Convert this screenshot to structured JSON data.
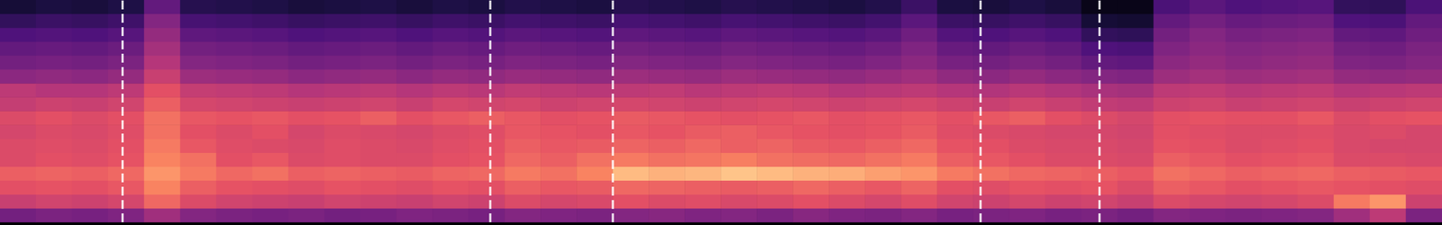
{
  "chart_data": {
    "type": "heatmap",
    "tick_labels": false,
    "grid": false,
    "xlim": [
      0,
      40
    ],
    "ylim": [
      0,
      16
    ],
    "zlim": [
      0,
      1
    ],
    "vertical_lines": {
      "x": [
        3.4,
        13.6,
        17.0,
        27.2,
        30.5
      ],
      "color": "#ffffff",
      "line_style": "dashed"
    },
    "cells": [
      [
        0.34,
        0.36,
        0.35,
        0.37,
        0.45,
        0.38,
        0.36,
        0.35,
        0.36,
        0.34,
        0.35,
        0.37,
        0.36,
        0.35,
        0.38,
        0.37,
        0.36,
        0.38,
        0.39,
        0.37,
        0.38,
        0.36,
        0.39,
        0.37,
        0.36,
        0.38,
        0.35,
        0.36,
        0.37,
        0.35,
        0.36,
        0.34,
        0.38,
        0.37,
        0.36,
        0.37,
        0.38,
        0.45,
        0.52,
        0.36
      ],
      [
        0.55,
        0.57,
        0.56,
        0.58,
        0.68,
        0.6,
        0.57,
        0.56,
        0.55,
        0.57,
        0.56,
        0.55,
        0.57,
        0.56,
        0.6,
        0.58,
        0.59,
        0.62,
        0.6,
        0.61,
        0.59,
        0.6,
        0.62,
        0.6,
        0.58,
        0.61,
        0.57,
        0.56,
        0.58,
        0.56,
        0.57,
        0.55,
        0.6,
        0.58,
        0.57,
        0.58,
        0.6,
        0.72,
        0.78,
        0.56
      ],
      [
        0.62,
        0.63,
        0.62,
        0.64,
        0.74,
        0.66,
        0.63,
        0.62,
        0.61,
        0.63,
        0.62,
        0.61,
        0.63,
        0.62,
        0.66,
        0.64,
        0.65,
        0.68,
        0.67,
        0.66,
        0.65,
        0.66,
        0.68,
        0.66,
        0.64,
        0.67,
        0.62,
        0.61,
        0.63,
        0.62,
        0.63,
        0.6,
        0.66,
        0.64,
        0.62,
        0.63,
        0.64,
        0.63,
        0.62,
        0.61
      ],
      [
        0.66,
        0.67,
        0.66,
        0.68,
        0.78,
        0.72,
        0.68,
        0.7,
        0.66,
        0.67,
        0.66,
        0.65,
        0.67,
        0.68,
        0.72,
        0.7,
        0.74,
        0.86,
        0.84,
        0.85,
        0.88,
        0.86,
        0.84,
        0.83,
        0.8,
        0.78,
        0.72,
        0.7,
        0.68,
        0.67,
        0.66,
        0.64,
        0.7,
        0.68,
        0.66,
        0.67,
        0.68,
        0.66,
        0.65,
        0.64
      ],
      [
        0.6,
        0.62,
        0.61,
        0.63,
        0.74,
        0.7,
        0.62,
        0.64,
        0.6,
        0.61,
        0.6,
        0.6,
        0.62,
        0.63,
        0.68,
        0.66,
        0.7,
        0.72,
        0.7,
        0.71,
        0.73,
        0.7,
        0.69,
        0.68,
        0.7,
        0.72,
        0.66,
        0.64,
        0.62,
        0.6,
        0.6,
        0.59,
        0.66,
        0.64,
        0.62,
        0.63,
        0.64,
        0.6,
        0.6,
        0.59
      ],
      [
        0.6,
        0.61,
        0.6,
        0.62,
        0.72,
        0.64,
        0.61,
        0.6,
        0.59,
        0.61,
        0.6,
        0.59,
        0.61,
        0.62,
        0.66,
        0.64,
        0.65,
        0.67,
        0.66,
        0.68,
        0.66,
        0.67,
        0.65,
        0.64,
        0.66,
        0.68,
        0.63,
        0.62,
        0.6,
        0.59,
        0.59,
        0.58,
        0.63,
        0.62,
        0.6,
        0.61,
        0.62,
        0.59,
        0.58,
        0.58
      ],
      [
        0.58,
        0.6,
        0.59,
        0.61,
        0.7,
        0.62,
        0.6,
        0.62,
        0.58,
        0.6,
        0.59,
        0.58,
        0.6,
        0.61,
        0.64,
        0.63,
        0.62,
        0.64,
        0.63,
        0.65,
        0.66,
        0.64,
        0.63,
        0.62,
        0.63,
        0.65,
        0.61,
        0.6,
        0.59,
        0.58,
        0.58,
        0.57,
        0.62,
        0.61,
        0.6,
        0.6,
        0.61,
        0.59,
        0.6,
        0.58
      ],
      [
        0.6,
        0.62,
        0.6,
        0.62,
        0.7,
        0.64,
        0.63,
        0.64,
        0.62,
        0.63,
        0.66,
        0.62,
        0.64,
        0.66,
        0.64,
        0.62,
        0.63,
        0.65,
        0.64,
        0.63,
        0.62,
        0.63,
        0.64,
        0.62,
        0.63,
        0.64,
        0.62,
        0.64,
        0.66,
        0.62,
        0.6,
        0.58,
        0.62,
        0.63,
        0.62,
        0.62,
        0.64,
        0.6,
        0.62,
        0.63
      ],
      [
        0.54,
        0.56,
        0.55,
        0.57,
        0.66,
        0.58,
        0.57,
        0.56,
        0.55,
        0.56,
        0.57,
        0.55,
        0.58,
        0.57,
        0.58,
        0.56,
        0.57,
        0.58,
        0.57,
        0.56,
        0.57,
        0.58,
        0.57,
        0.56,
        0.57,
        0.58,
        0.56,
        0.55,
        0.57,
        0.55,
        0.53,
        0.52,
        0.56,
        0.57,
        0.55,
        0.56,
        0.57,
        0.55,
        0.56,
        0.57
      ],
      [
        0.52,
        0.5,
        0.5,
        0.52,
        0.62,
        0.54,
        0.53,
        0.52,
        0.5,
        0.51,
        0.52,
        0.5,
        0.52,
        0.51,
        0.53,
        0.52,
        0.51,
        0.52,
        0.53,
        0.51,
        0.52,
        0.53,
        0.52,
        0.5,
        0.51,
        0.52,
        0.5,
        0.49,
        0.51,
        0.49,
        0.47,
        0.46,
        0.52,
        0.53,
        0.51,
        0.52,
        0.53,
        0.5,
        0.51,
        0.52
      ],
      [
        0.4,
        0.41,
        0.4,
        0.42,
        0.55,
        0.44,
        0.43,
        0.42,
        0.4,
        0.41,
        0.42,
        0.4,
        0.42,
        0.41,
        0.43,
        0.42,
        0.41,
        0.44,
        0.43,
        0.42,
        0.44,
        0.43,
        0.42,
        0.41,
        0.43,
        0.45,
        0.41,
        0.4,
        0.42,
        0.4,
        0.38,
        0.37,
        0.44,
        0.46,
        0.44,
        0.45,
        0.46,
        0.42,
        0.41,
        0.42
      ],
      [
        0.34,
        0.35,
        0.34,
        0.36,
        0.5,
        0.38,
        0.37,
        0.36,
        0.34,
        0.35,
        0.36,
        0.34,
        0.36,
        0.35,
        0.37,
        0.36,
        0.35,
        0.38,
        0.37,
        0.36,
        0.38,
        0.37,
        0.36,
        0.35,
        0.37,
        0.4,
        0.35,
        0.34,
        0.36,
        0.34,
        0.3,
        0.29,
        0.4,
        0.42,
        0.4,
        0.41,
        0.42,
        0.37,
        0.36,
        0.38
      ],
      [
        0.3,
        0.31,
        0.3,
        0.32,
        0.46,
        0.34,
        0.33,
        0.32,
        0.3,
        0.31,
        0.32,
        0.3,
        0.32,
        0.31,
        0.33,
        0.32,
        0.31,
        0.34,
        0.33,
        0.32,
        0.34,
        0.33,
        0.32,
        0.31,
        0.33,
        0.37,
        0.31,
        0.3,
        0.32,
        0.3,
        0.25,
        0.24,
        0.37,
        0.4,
        0.38,
        0.39,
        0.4,
        0.34,
        0.33,
        0.36
      ],
      [
        0.25,
        0.26,
        0.25,
        0.27,
        0.42,
        0.29,
        0.28,
        0.27,
        0.25,
        0.26,
        0.27,
        0.25,
        0.27,
        0.26,
        0.28,
        0.27,
        0.26,
        0.29,
        0.28,
        0.27,
        0.29,
        0.28,
        0.27,
        0.26,
        0.28,
        0.33,
        0.26,
        0.25,
        0.27,
        0.25,
        0.18,
        0.17,
        0.34,
        0.38,
        0.35,
        0.36,
        0.37,
        0.3,
        0.29,
        0.33
      ],
      [
        0.18,
        0.2,
        0.19,
        0.21,
        0.38,
        0.23,
        0.22,
        0.21,
        0.19,
        0.2,
        0.21,
        0.19,
        0.21,
        0.2,
        0.22,
        0.21,
        0.2,
        0.23,
        0.22,
        0.21,
        0.23,
        0.22,
        0.21,
        0.2,
        0.22,
        0.28,
        0.2,
        0.19,
        0.21,
        0.19,
        0.1,
        0.09,
        0.3,
        0.34,
        0.31,
        0.32,
        0.33,
        0.25,
        0.24,
        0.3
      ],
      [
        0.1,
        0.12,
        0.11,
        0.13,
        0.3,
        0.15,
        0.14,
        0.13,
        0.11,
        0.12,
        0.13,
        0.11,
        0.13,
        0.12,
        0.14,
        0.13,
        0.12,
        0.15,
        0.14,
        0.13,
        0.15,
        0.14,
        0.13,
        0.12,
        0.14,
        0.2,
        0.12,
        0.11,
        0.13,
        0.11,
        0.04,
        0.04,
        0.24,
        0.28,
        0.25,
        0.26,
        0.27,
        0.18,
        0.17,
        0.24
      ]
    ]
  }
}
